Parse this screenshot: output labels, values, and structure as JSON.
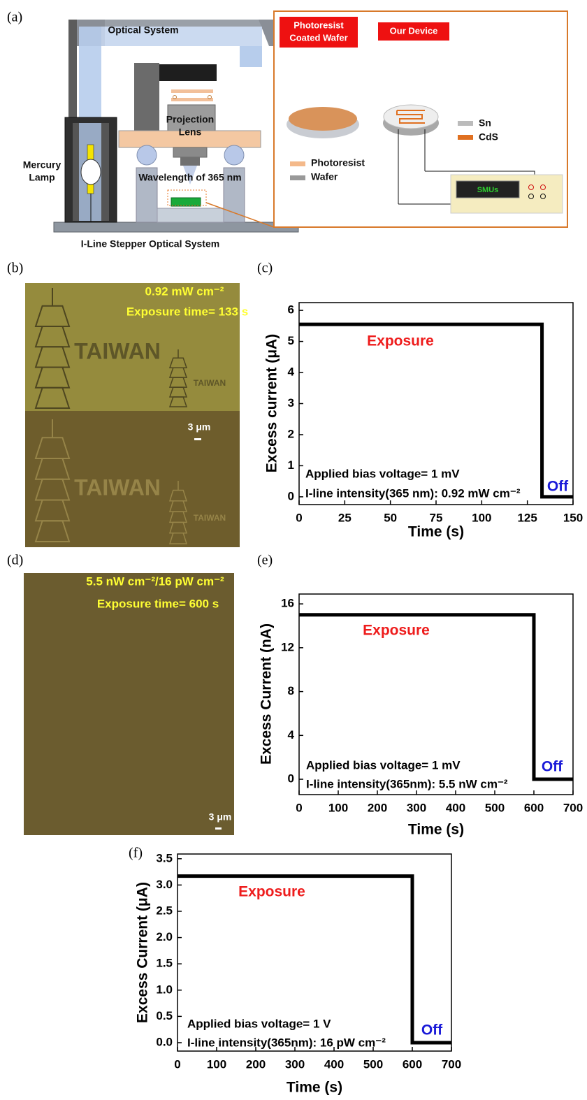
{
  "panel_labels": [
    "(a)",
    "(b)",
    "(c)",
    "(d)",
    "(e)",
    "(f)"
  ],
  "diagram": {
    "optical_system": "Optical System",
    "projection_lens": [
      "Projection",
      "Lens"
    ],
    "mercury_lamp": [
      "Mercury",
      "Lamp"
    ],
    "wavelength": "Wavelength of 365 nm",
    "caption": "I-Line Stepper Optical System",
    "photoresist_coated_wafer": [
      "Photoresist",
      "Coated Wafer"
    ],
    "our_device": "Our Device",
    "legend_photoresist": "Photoresist",
    "legend_wafer": "Wafer",
    "legend_sn": "Sn",
    "legend_cds": "CdS",
    "smus": "SMUs"
  },
  "micrograph_b": {
    "intensity": "0.92 mW cm⁻²",
    "exposure_time": "Exposure time= 133 s",
    "pattern_labels": [
      "TAIWAN",
      "TAIWAN",
      "TAIWAN",
      "TAIWAN"
    ],
    "scale_bar": "3 μm"
  },
  "micrograph_d": {
    "intensity": "5.5 nW cm⁻²/16 pW cm⁻²",
    "exposure_time": "Exposure time= 600 s",
    "scale_bar": "3 μm"
  },
  "chart_data": [
    {
      "type": "line",
      "x": [
        0,
        133,
        133,
        150
      ],
      "values": [
        5.55,
        5.55,
        0,
        0
      ],
      "color": "#000000",
      "xlim": [
        0,
        150
      ],
      "ylim": [
        -0.25,
        6.25
      ],
      "xticks": [
        0,
        25,
        50,
        75,
        100,
        125,
        150
      ],
      "yticks": [
        0,
        1,
        2,
        3,
        4,
        5,
        6
      ],
      "xlabel": "Time (s)",
      "ylabel": "Excess current (μA)",
      "annotations": [
        {
          "text": "Exposure",
          "color": "#ee1c1c"
        },
        {
          "text": "Off",
          "color": "#1a1ad8"
        },
        {
          "text": "Applied bias voltage= 1 mV",
          "color": "#000000"
        },
        {
          "text": "I-line intensity(365 nm): 0.92 mW cm⁻²",
          "color": "#000000"
        }
      ]
    },
    {
      "type": "line",
      "x": [
        0,
        600,
        600,
        700
      ],
      "values": [
        15,
        15,
        0,
        0
      ],
      "color": "#000000",
      "xlim": [
        0,
        700
      ],
      "ylim": [
        -1.4,
        16.9
      ],
      "xticks": [
        0,
        100,
        200,
        300,
        400,
        500,
        600,
        700
      ],
      "yticks": [
        0,
        4,
        8,
        12,
        16
      ],
      "xlabel": "Time (s)",
      "ylabel": "Excess Current (nA)",
      "annotations": [
        {
          "text": "Exposure",
          "color": "#ee1c1c"
        },
        {
          "text": "Off",
          "color": "#1a1ad8"
        },
        {
          "text": "Applied bias voltage= 1 mV",
          "color": "#000000"
        },
        {
          "text": "I-line intensity(365nm): 5.5 nW cm⁻²",
          "color": "#000000"
        }
      ]
    },
    {
      "type": "line",
      "x": [
        0,
        600,
        600,
        700
      ],
      "values": [
        3.17,
        3.17,
        0,
        0
      ],
      "color": "#000000",
      "xlim": [
        0,
        700
      ],
      "ylim": [
        -0.16,
        3.59
      ],
      "xticks": [
        0,
        100,
        200,
        300,
        400,
        500,
        600,
        700
      ],
      "yticks": [
        {
          "value": 0,
          "label": "0.0"
        },
        0.5,
        {
          "value": 1,
          "label": "1.0"
        },
        1.5,
        {
          "value": 2,
          "label": "2.0"
        },
        2.5,
        {
          "value": 3,
          "label": "3.0"
        },
        3.5
      ],
      "xlabel": "Time (s)",
      "ylabel": "Excess Current (μA)",
      "annotations": [
        {
          "text": "Exposure",
          "color": "#ee1c1c"
        },
        {
          "text": "Off",
          "color": "#1a1ad8"
        },
        {
          "text": "Applied bias voltage= 1 V",
          "color": "#000000"
        },
        {
          "text": "I-line intensity(365nm): 16 pW cm⁻²",
          "color": "#000000"
        }
      ]
    }
  ]
}
